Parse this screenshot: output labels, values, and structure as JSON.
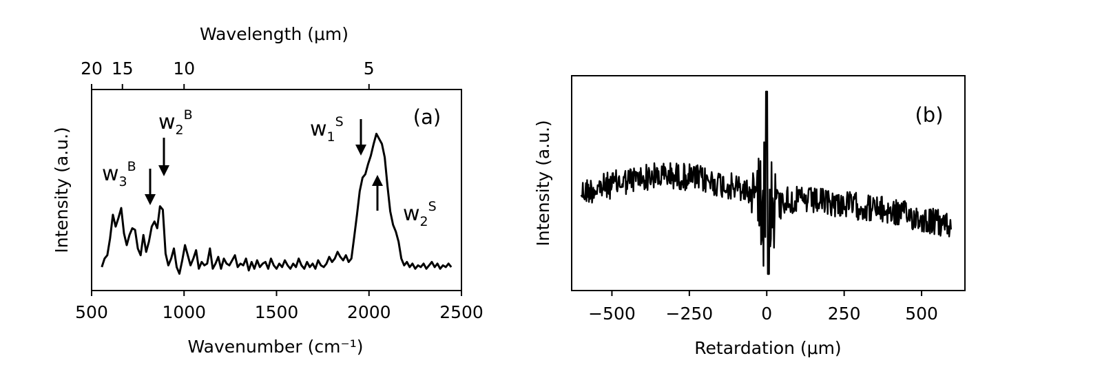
{
  "chart_data": [
    {
      "panel": "(a)",
      "type": "line",
      "xlabel": "Wavenumber (cm⁻¹)",
      "ylabel": "Intensity (a.u.)",
      "top_xlabel": "Wavelength (μm)",
      "xlim": [
        500,
        2500
      ],
      "ylim": [
        0,
        1
      ],
      "xticks": [
        500,
        1000,
        1500,
        2000,
        2500
      ],
      "top_ticks": [
        {
          "label": "20",
          "value": 20
        },
        {
          "label": "15",
          "value": 15
        },
        {
          "label": "10",
          "value": 10
        },
        {
          "label": "5",
          "value": 5
        }
      ],
      "grid": false,
      "x": [
        555,
        570,
        585,
        600,
        615,
        630,
        645,
        660,
        675,
        690,
        705,
        720,
        735,
        750,
        765,
        780,
        795,
        810,
        825,
        840,
        855,
        870,
        885,
        900,
        915,
        930,
        945,
        960,
        975,
        990,
        1005,
        1020,
        1035,
        1050,
        1065,
        1080,
        1095,
        1110,
        1125,
        1140,
        1155,
        1170,
        1185,
        1200,
        1215,
        1230,
        1245,
        1260,
        1275,
        1290,
        1305,
        1320,
        1335,
        1350,
        1365,
        1380,
        1395,
        1410,
        1425,
        1440,
        1455,
        1470,
        1485,
        1500,
        1515,
        1530,
        1545,
        1560,
        1575,
        1590,
        1605,
        1620,
        1635,
        1650,
        1665,
        1680,
        1695,
        1710,
        1725,
        1740,
        1755,
        1770,
        1785,
        1800,
        1815,
        1830,
        1845,
        1860,
        1875,
        1890,
        1905,
        1920,
        1935,
        1950,
        1965,
        1980,
        1995,
        2010,
        2025,
        2040,
        2055,
        2070,
        2085,
        2100,
        2115,
        2130,
        2145,
        2160,
        2175,
        2190,
        2205,
        2220,
        2235,
        2250,
        2265,
        2280,
        2295,
        2310,
        2325,
        2340,
        2355,
        2370,
        2385,
        2400,
        2415,
        2430,
        2445
      ],
      "values": [
        0.07,
        0.12,
        0.14,
        0.24,
        0.38,
        0.31,
        0.36,
        0.42,
        0.27,
        0.2,
        0.26,
        0.3,
        0.29,
        0.18,
        0.14,
        0.26,
        0.16,
        0.22,
        0.31,
        0.34,
        0.3,
        0.43,
        0.41,
        0.15,
        0.08,
        0.12,
        0.18,
        0.07,
        0.03,
        0.11,
        0.2,
        0.14,
        0.08,
        0.12,
        0.17,
        0.06,
        0.1,
        0.08,
        0.09,
        0.18,
        0.06,
        0.09,
        0.13,
        0.06,
        0.12,
        0.09,
        0.08,
        0.11,
        0.14,
        0.07,
        0.09,
        0.08,
        0.12,
        0.05,
        0.1,
        0.06,
        0.11,
        0.07,
        0.09,
        0.1,
        0.06,
        0.12,
        0.08,
        0.06,
        0.09,
        0.07,
        0.11,
        0.08,
        0.06,
        0.09,
        0.07,
        0.12,
        0.08,
        0.06,
        0.1,
        0.07,
        0.09,
        0.06,
        0.11,
        0.08,
        0.07,
        0.09,
        0.13,
        0.1,
        0.12,
        0.16,
        0.13,
        0.11,
        0.14,
        0.1,
        0.12,
        0.25,
        0.38,
        0.52,
        0.6,
        0.62,
        0.68,
        0.73,
        0.8,
        0.86,
        0.83,
        0.8,
        0.72,
        0.55,
        0.4,
        0.32,
        0.28,
        0.22,
        0.12,
        0.08,
        0.1,
        0.07,
        0.09,
        0.06,
        0.08,
        0.07,
        0.09,
        0.06,
        0.08,
        0.1,
        0.07,
        0.09,
        0.06,
        0.08,
        0.07,
        0.09,
        0.07
      ],
      "annotations": [
        {
          "label": "w",
          "sub": "3",
          "sup": "B",
          "x": 818,
          "arrow": "down"
        },
        {
          "label": "w",
          "sub": "2",
          "sup": "B",
          "x": 895,
          "arrow": "down"
        },
        {
          "label": "w",
          "sub": "1",
          "sup": "S",
          "x": 1970,
          "arrow": "down"
        },
        {
          "label": "w",
          "sub": "2",
          "sup": "S",
          "x": 2055,
          "arrow": "up"
        }
      ]
    },
    {
      "panel": "(b)",
      "type": "line",
      "xlabel": "Retardation (μm)",
      "ylabel": "Intensity (a.u.)",
      "xlim": [
        -630,
        640
      ],
      "ylim": [
        -1,
        1
      ],
      "xticks": [
        -500,
        -250,
        0,
        250,
        500
      ],
      "xtick_labels": [
        "−500",
        "−250",
        "0",
        "250",
        "500"
      ],
      "grid": false,
      "x_start": -600,
      "x_end": 595,
      "n_points": 601,
      "description": "noisy interferogram, centre burst at 0 μm, slowly decaying baseline"
    }
  ]
}
